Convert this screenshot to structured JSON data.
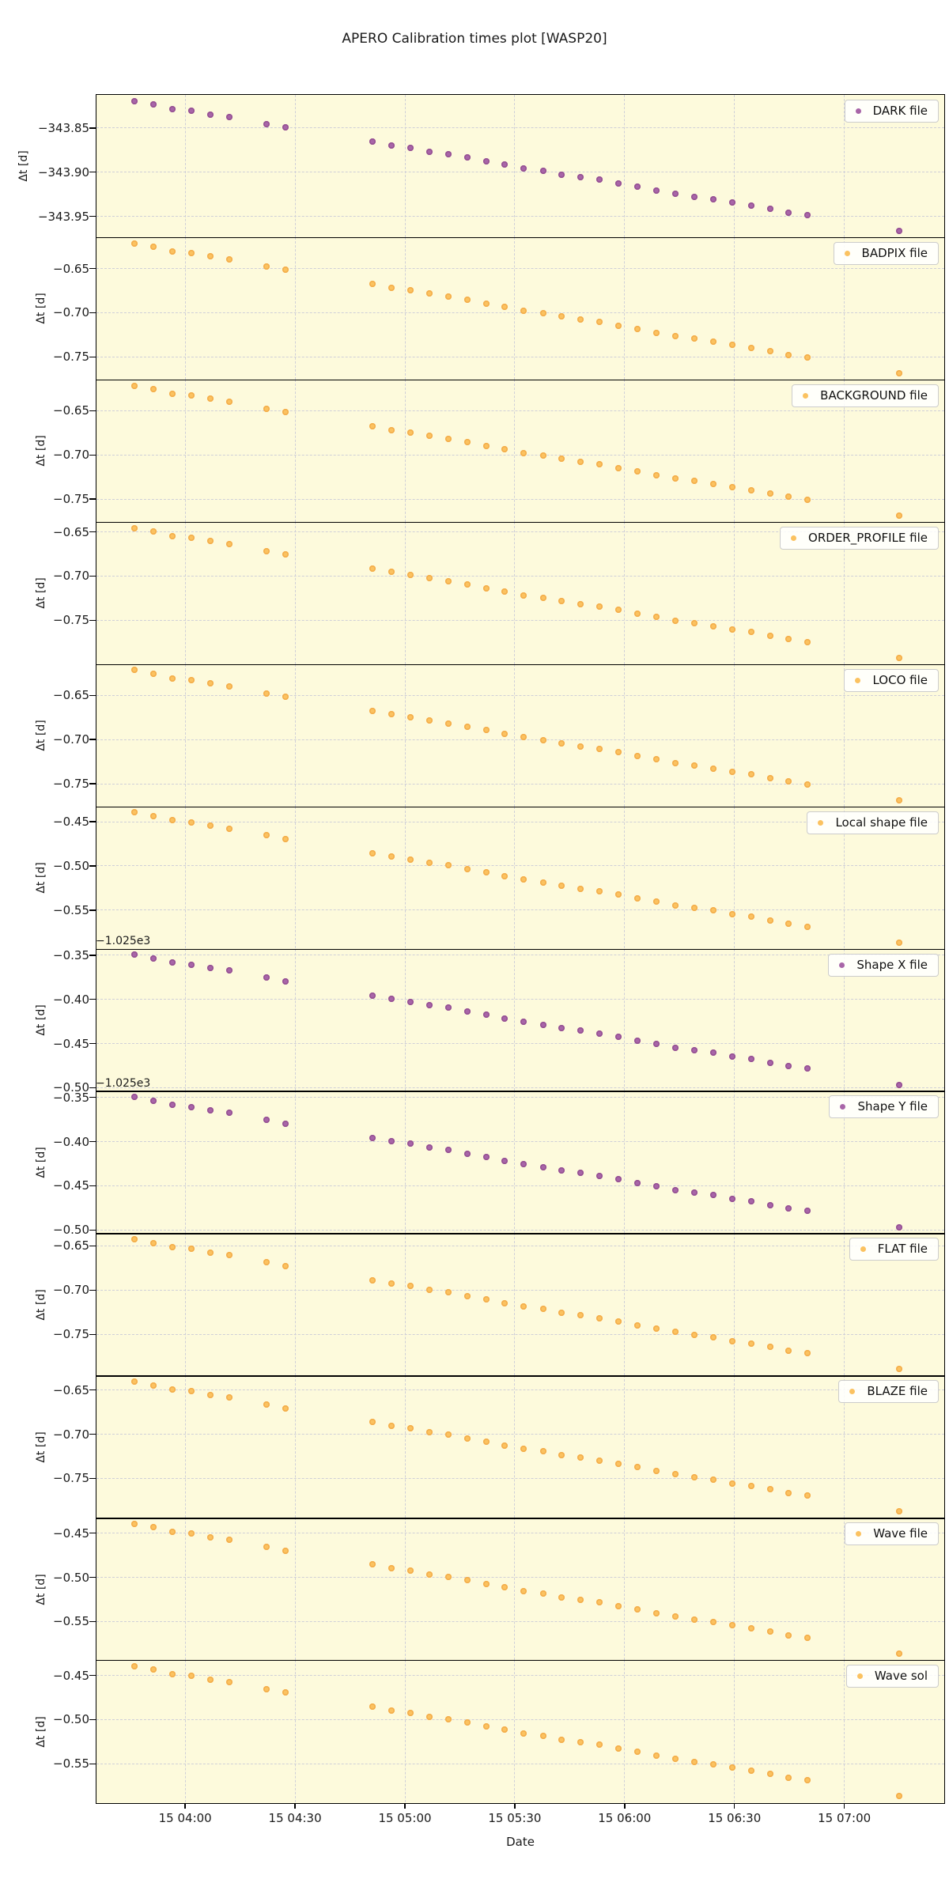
{
  "title": "APERO Calibration times plot [WASP20]",
  "xlabel": "Date",
  "ylabel": "Δt [d]",
  "colors": {
    "panel_background": "#fdfadc",
    "grid": "#cfcfd8",
    "axis": "#000000",
    "purple_marker": "#a865a8",
    "orange_marker": "#fbc260",
    "legend_background": "#ffffff",
    "legend_border": "#cccccc"
  },
  "chart_data": {
    "type": "scatter",
    "title": "APERO Calibration times plot [WASP20]",
    "xlabel": "Date",
    "ylabel_each_panel": "Δt [d]",
    "grid": "dashed",
    "legend_position": "upper right",
    "xlim": [
      3.598,
      7.453
    ],
    "x_ticks": [
      {
        "h": 4.0,
        "label": "15 04:00"
      },
      {
        "h": 4.5,
        "label": "15 04:30"
      },
      {
        "h": 5.0,
        "label": "15 05:00"
      },
      {
        "h": 5.5,
        "label": "15 05:30"
      },
      {
        "h": 6.0,
        "label": "15 06:00"
      },
      {
        "h": 6.5,
        "label": "15 06:30"
      },
      {
        "h": 7.0,
        "label": "15 07:00"
      }
    ],
    "x_hours": [
      3.77,
      3.856,
      3.943,
      4.029,
      4.115,
      4.201,
      4.373,
      4.459,
      4.854,
      4.94,
      5.027,
      5.113,
      5.199,
      5.285,
      5.371,
      5.457,
      5.543,
      5.63,
      5.716,
      5.802,
      5.888,
      5.974,
      6.06,
      6.146,
      6.232,
      6.319,
      6.405,
      6.491,
      6.577,
      6.663,
      6.749,
      6.835,
      7.252
    ],
    "panels": [
      {
        "name": "DARK file",
        "color": "purple",
        "offset_text": null,
        "ylim": [
          -343.813,
          -343.974
        ],
        "yticks": [
          -343.85,
          -343.9,
          -343.95
        ],
        "ytick_labels": [
          "−343.85",
          "−343.90",
          "−343.95"
        ],
        "y": [
          -343.82,
          -343.824,
          -343.829,
          -343.831,
          -343.835,
          -343.838,
          -343.846,
          -343.85,
          -343.866,
          -343.87,
          -343.873,
          -343.877,
          -343.88,
          -343.884,
          -343.888,
          -343.892,
          -343.896,
          -343.899,
          -343.903,
          -343.906,
          -343.909,
          -343.913,
          -343.917,
          -343.921,
          -343.925,
          -343.928,
          -343.931,
          -343.935,
          -343.938,
          -343.942,
          -343.946,
          -343.949,
          -343.967
        ]
      },
      {
        "name": "BADPIX file",
        "color": "orange",
        "offset_text": null,
        "ylim": [
          -0.615,
          -0.776
        ],
        "yticks": [
          -0.65,
          -0.7,
          -0.75
        ],
        "ytick_labels": [
          "−0.65",
          "−0.70",
          "−0.75"
        ],
        "y": [
          -0.622,
          -0.626,
          -0.631,
          -0.633,
          -0.637,
          -0.64,
          -0.648,
          -0.652,
          -0.668,
          -0.672,
          -0.675,
          -0.679,
          -0.682,
          -0.686,
          -0.69,
          -0.694,
          -0.698,
          -0.701,
          -0.705,
          -0.708,
          -0.711,
          -0.715,
          -0.719,
          -0.723,
          -0.727,
          -0.73,
          -0.733,
          -0.737,
          -0.74,
          -0.744,
          -0.748,
          -0.751,
          -0.769
        ]
      },
      {
        "name": "BACKGROUND file",
        "color": "orange",
        "offset_text": null,
        "ylim": [
          -0.615,
          -0.776
        ],
        "yticks": [
          -0.65,
          -0.7,
          -0.75
        ],
        "ytick_labels": [
          "−0.65",
          "−0.70",
          "−0.75"
        ],
        "y": [
          -0.622,
          -0.626,
          -0.631,
          -0.633,
          -0.637,
          -0.64,
          -0.648,
          -0.652,
          -0.668,
          -0.672,
          -0.675,
          -0.679,
          -0.682,
          -0.686,
          -0.69,
          -0.694,
          -0.698,
          -0.701,
          -0.705,
          -0.708,
          -0.711,
          -0.715,
          -0.719,
          -0.723,
          -0.727,
          -0.73,
          -0.733,
          -0.737,
          -0.74,
          -0.744,
          -0.748,
          -0.751,
          -0.769
        ]
      },
      {
        "name": "ORDER_PROFILE file",
        "color": "orange",
        "offset_text": null,
        "ylim": [
          -0.639,
          -0.8
        ],
        "yticks": [
          -0.65,
          -0.7,
          -0.75
        ],
        "ytick_labels": [
          "−0.65",
          "−0.70",
          "−0.75"
        ],
        "y": [
          -0.646,
          -0.65,
          -0.655,
          -0.657,
          -0.661,
          -0.664,
          -0.672,
          -0.676,
          -0.692,
          -0.696,
          -0.699,
          -0.703,
          -0.706,
          -0.71,
          -0.714,
          -0.718,
          -0.722,
          -0.725,
          -0.729,
          -0.732,
          -0.735,
          -0.739,
          -0.743,
          -0.747,
          -0.751,
          -0.754,
          -0.757,
          -0.761,
          -0.764,
          -0.768,
          -0.772,
          -0.775,
          -0.793
        ]
      },
      {
        "name": "LOCO file",
        "color": "orange",
        "offset_text": null,
        "ylim": [
          -0.615,
          -0.776
        ],
        "yticks": [
          -0.65,
          -0.7,
          -0.75
        ],
        "ytick_labels": [
          "−0.65",
          "−0.70",
          "−0.75"
        ],
        "y": [
          -0.622,
          -0.626,
          -0.631,
          -0.633,
          -0.637,
          -0.64,
          -0.648,
          -0.652,
          -0.668,
          -0.672,
          -0.675,
          -0.679,
          -0.682,
          -0.686,
          -0.69,
          -0.694,
          -0.698,
          -0.701,
          -0.705,
          -0.708,
          -0.711,
          -0.715,
          -0.719,
          -0.723,
          -0.727,
          -0.73,
          -0.733,
          -0.737,
          -0.74,
          -0.744,
          -0.748,
          -0.751,
          -0.769
        ]
      },
      {
        "name": "Local shape file",
        "color": "orange",
        "offset_text": null,
        "ylim": [
          -0.433,
          -0.594
        ],
        "yticks": [
          -0.45,
          -0.5,
          -0.55
        ],
        "ytick_labels": [
          "−0.45",
          "−0.50",
          "−0.55"
        ],
        "y": [
          -0.44,
          -0.444,
          -0.449,
          -0.451,
          -0.455,
          -0.458,
          -0.466,
          -0.47,
          -0.486,
          -0.49,
          -0.493,
          -0.497,
          -0.5,
          -0.504,
          -0.508,
          -0.512,
          -0.516,
          -0.519,
          -0.523,
          -0.526,
          -0.529,
          -0.533,
          -0.537,
          -0.541,
          -0.545,
          -0.548,
          -0.551,
          -0.555,
          -0.558,
          -0.562,
          -0.566,
          -0.569,
          -0.587
        ]
      },
      {
        "name": "Shape X file",
        "color": "purple",
        "offset_text": "−1.025e3",
        "ylim": [
          -0.343,
          -0.504
        ],
        "yticks": [
          -0.35,
          -0.4,
          -0.45,
          -0.5
        ],
        "ytick_labels": [
          "−0.35",
          "−0.40",
          "−0.45",
          "−0.50"
        ],
        "y": [
          -0.35,
          -0.354,
          -0.359,
          -0.361,
          -0.365,
          -0.368,
          -0.376,
          -0.38,
          -0.396,
          -0.4,
          -0.403,
          -0.407,
          -0.41,
          -0.414,
          -0.418,
          -0.422,
          -0.426,
          -0.429,
          -0.433,
          -0.436,
          -0.439,
          -0.443,
          -0.447,
          -0.451,
          -0.455,
          -0.458,
          -0.461,
          -0.465,
          -0.468,
          -0.472,
          -0.476,
          -0.479,
          -0.497
        ]
      },
      {
        "name": "Shape Y file",
        "color": "purple",
        "offset_text": "−1.025e3",
        "ylim": [
          -0.343,
          -0.504
        ],
        "yticks": [
          -0.35,
          -0.4,
          -0.45,
          -0.5
        ],
        "ytick_labels": [
          "−0.35",
          "−0.40",
          "−0.45",
          "−0.50"
        ],
        "y": [
          -0.35,
          -0.354,
          -0.359,
          -0.361,
          -0.365,
          -0.368,
          -0.376,
          -0.38,
          -0.396,
          -0.4,
          -0.403,
          -0.407,
          -0.41,
          -0.414,
          -0.418,
          -0.422,
          -0.426,
          -0.429,
          -0.433,
          -0.436,
          -0.439,
          -0.443,
          -0.447,
          -0.451,
          -0.455,
          -0.458,
          -0.461,
          -0.465,
          -0.468,
          -0.472,
          -0.476,
          -0.479,
          -0.497
        ]
      },
      {
        "name": "FLAT file",
        "color": "orange",
        "offset_text": null,
        "ylim": [
          -0.636,
          -0.797
        ],
        "yticks": [
          -0.65,
          -0.7,
          -0.75
        ],
        "ytick_labels": [
          "−0.65",
          "−0.70",
          "−0.75"
        ],
        "y": [
          -0.643,
          -0.647,
          -0.652,
          -0.654,
          -0.658,
          -0.661,
          -0.669,
          -0.673,
          -0.689,
          -0.693,
          -0.696,
          -0.7,
          -0.703,
          -0.707,
          -0.711,
          -0.715,
          -0.719,
          -0.722,
          -0.726,
          -0.729,
          -0.732,
          -0.736,
          -0.74,
          -0.744,
          -0.748,
          -0.751,
          -0.754,
          -0.758,
          -0.761,
          -0.765,
          -0.769,
          -0.772,
          -0.79
        ]
      },
      {
        "name": "BLAZE file",
        "color": "orange",
        "offset_text": null,
        "ylim": [
          -0.634,
          -0.795
        ],
        "yticks": [
          -0.65,
          -0.7,
          -0.75
        ],
        "ytick_labels": [
          "−0.65",
          "−0.70",
          "−0.75"
        ],
        "y": [
          -0.641,
          -0.645,
          -0.65,
          -0.652,
          -0.656,
          -0.659,
          -0.667,
          -0.671,
          -0.687,
          -0.691,
          -0.694,
          -0.698,
          -0.701,
          -0.705,
          -0.709,
          -0.713,
          -0.717,
          -0.72,
          -0.724,
          -0.727,
          -0.73,
          -0.734,
          -0.738,
          -0.742,
          -0.746,
          -0.749,
          -0.752,
          -0.756,
          -0.759,
          -0.763,
          -0.767,
          -0.77,
          -0.788
        ]
      },
      {
        "name": "Wave file",
        "color": "orange",
        "offset_text": null,
        "ylim": [
          -0.433,
          -0.594
        ],
        "yticks": [
          -0.45,
          -0.5,
          -0.55
        ],
        "ytick_labels": [
          "−0.45",
          "−0.50",
          "−0.55"
        ],
        "y": [
          -0.44,
          -0.444,
          -0.449,
          -0.451,
          -0.455,
          -0.458,
          -0.466,
          -0.47,
          -0.486,
          -0.49,
          -0.493,
          -0.497,
          -0.5,
          -0.504,
          -0.508,
          -0.512,
          -0.516,
          -0.519,
          -0.523,
          -0.526,
          -0.529,
          -0.533,
          -0.537,
          -0.541,
          -0.545,
          -0.548,
          -0.551,
          -0.555,
          -0.558,
          -0.562,
          -0.566,
          -0.569,
          -0.587
        ]
      },
      {
        "name": "Wave sol",
        "color": "orange",
        "offset_text": null,
        "ylim": [
          -0.433,
          -0.594
        ],
        "yticks": [
          -0.45,
          -0.5,
          -0.55
        ],
        "ytick_labels": [
          "−0.45",
          "−0.50",
          "−0.55"
        ],
        "y": [
          -0.44,
          -0.444,
          -0.449,
          -0.451,
          -0.455,
          -0.458,
          -0.466,
          -0.47,
          -0.486,
          -0.49,
          -0.493,
          -0.497,
          -0.5,
          -0.504,
          -0.508,
          -0.512,
          -0.516,
          -0.519,
          -0.523,
          -0.526,
          -0.529,
          -0.533,
          -0.537,
          -0.541,
          -0.545,
          -0.548,
          -0.551,
          -0.555,
          -0.558,
          -0.562,
          -0.566,
          -0.569,
          -0.587
        ]
      }
    ]
  }
}
